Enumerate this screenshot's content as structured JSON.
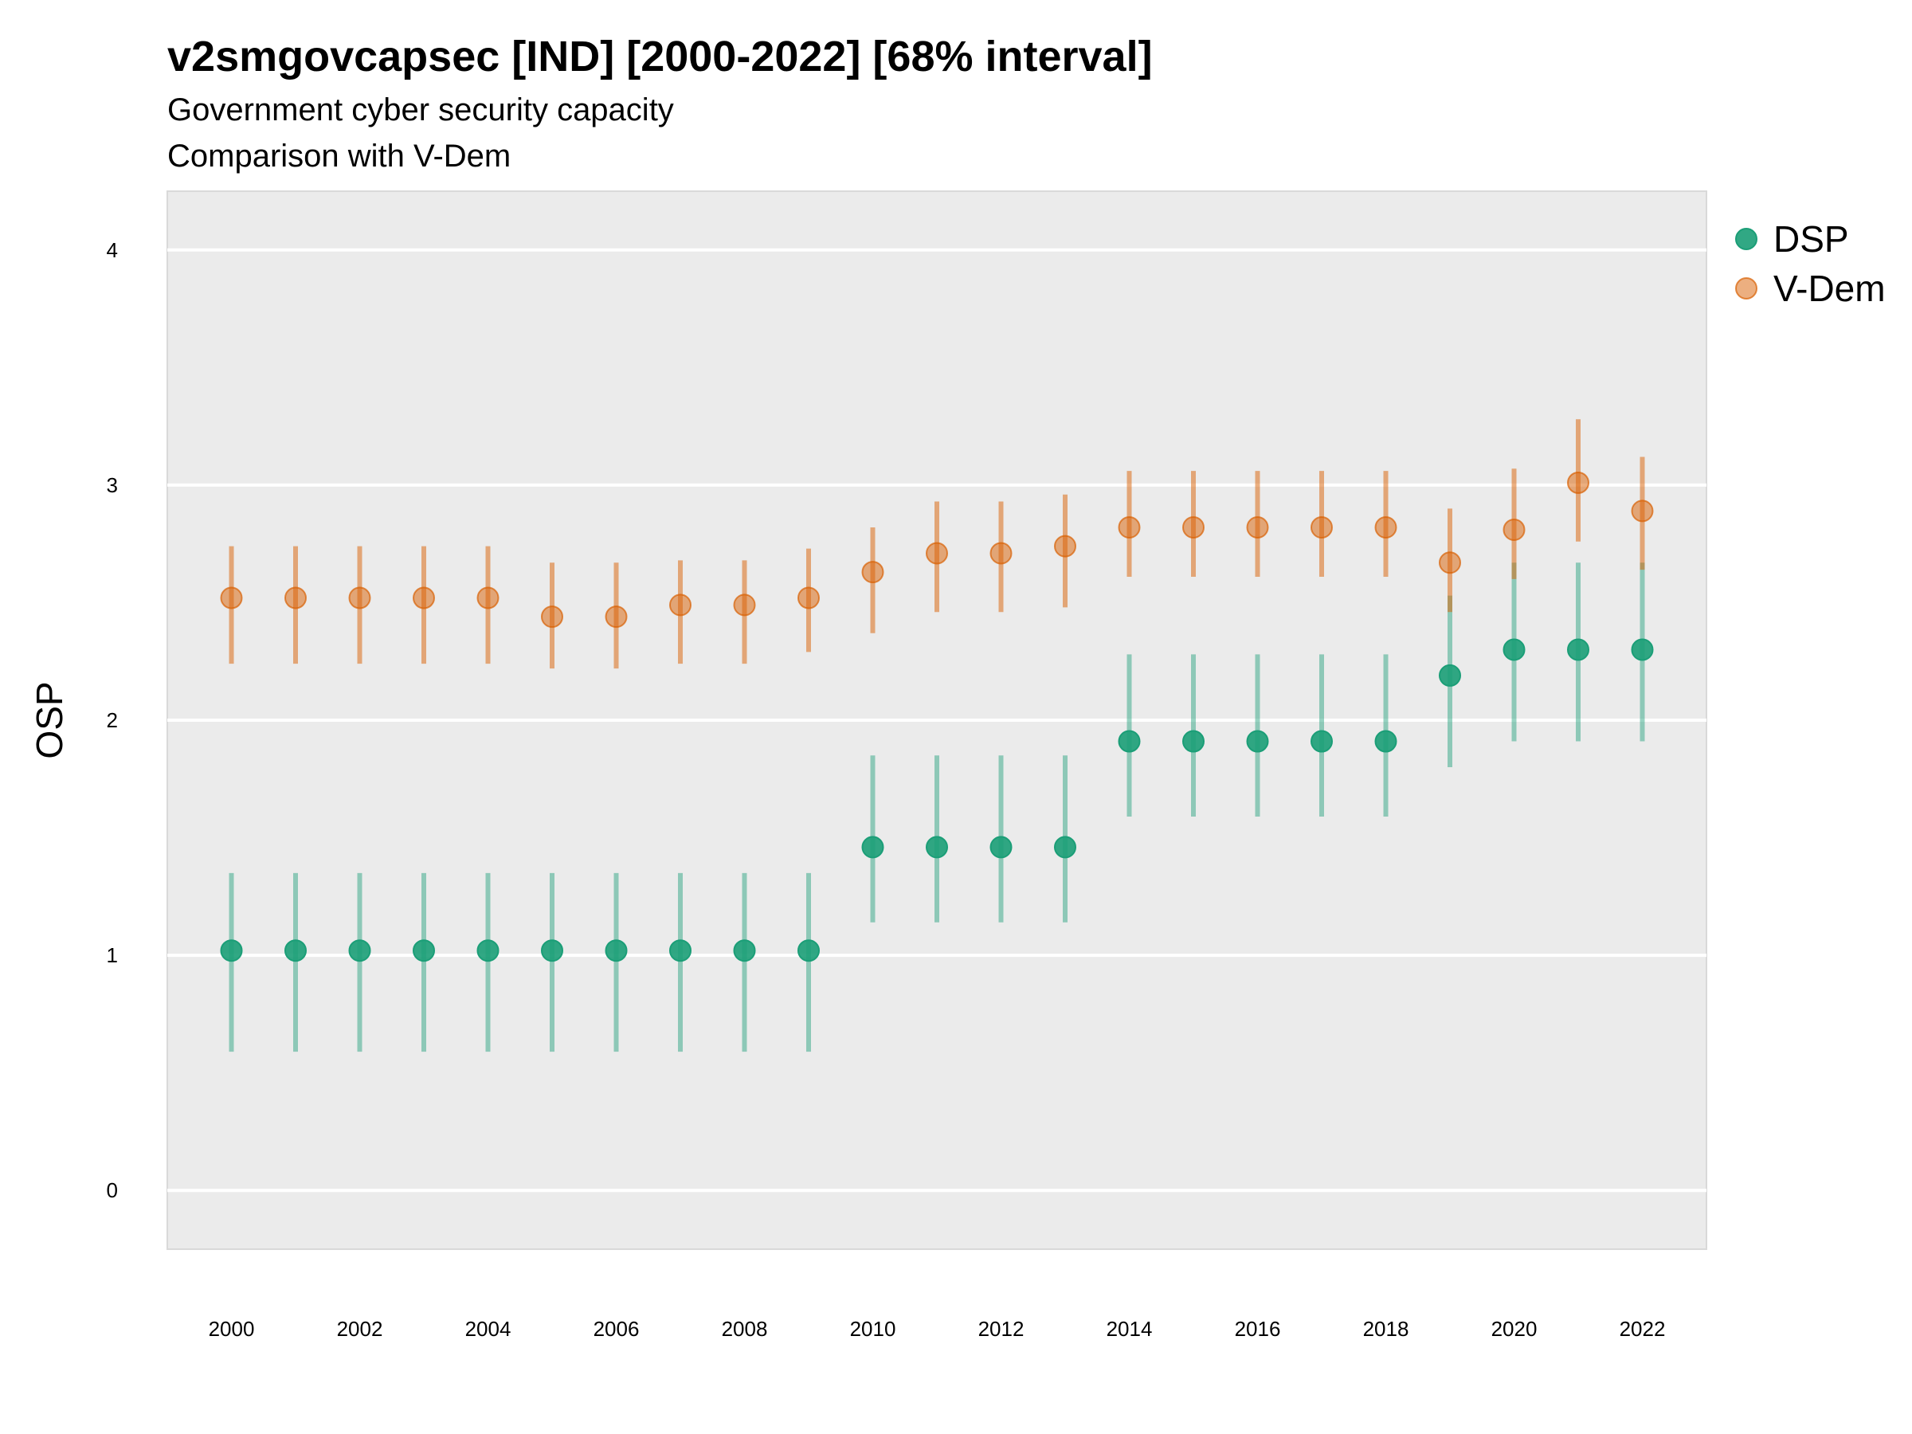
{
  "chart_data": {
    "type": "scatter",
    "title": "v2smgovcapsec [IND] [2000-2022] [68% interval]",
    "subtitle": "Government cyber security capacity",
    "subtitle2": "Comparison with V-Dem",
    "xlabel": "",
    "ylabel": "OSP",
    "x": [
      2000,
      2001,
      2002,
      2003,
      2004,
      2005,
      2006,
      2007,
      2008,
      2009,
      2010,
      2011,
      2012,
      2013,
      2014,
      2015,
      2016,
      2017,
      2018,
      2019,
      2020,
      2021,
      2022
    ],
    "xticks": [
      2000,
      2002,
      2004,
      2006,
      2008,
      2010,
      2012,
      2014,
      2016,
      2018,
      2020,
      2022
    ],
    "yticks": [
      0,
      1,
      2,
      3,
      4
    ],
    "xlim": [
      1999,
      2023
    ],
    "ylim": [
      -0.25,
      4.25
    ],
    "grid": true,
    "legend_position": "right",
    "series": [
      {
        "name": "DSP",
        "color": "#1b9e77",
        "values": [
          1.02,
          1.02,
          1.02,
          1.02,
          1.02,
          1.02,
          1.02,
          1.02,
          1.02,
          1.02,
          1.46,
          1.46,
          1.46,
          1.46,
          1.91,
          1.91,
          1.91,
          1.91,
          1.91,
          2.19,
          2.3,
          2.3,
          2.3
        ],
        "lower": [
          0.59,
          0.59,
          0.59,
          0.59,
          0.59,
          0.59,
          0.59,
          0.59,
          0.59,
          0.59,
          1.14,
          1.14,
          1.14,
          1.14,
          1.59,
          1.59,
          1.59,
          1.59,
          1.59,
          1.8,
          1.91,
          1.91,
          1.91
        ],
        "upper": [
          1.35,
          1.35,
          1.35,
          1.35,
          1.35,
          1.35,
          1.35,
          1.35,
          1.35,
          1.35,
          1.85,
          1.85,
          1.85,
          1.85,
          2.28,
          2.28,
          2.28,
          2.28,
          2.28,
          2.53,
          2.67,
          2.67,
          2.67
        ]
      },
      {
        "name": "V-Dem",
        "color": "#d95f02",
        "values": [
          2.52,
          2.52,
          2.52,
          2.52,
          2.52,
          2.44,
          2.44,
          2.49,
          2.49,
          2.52,
          2.63,
          2.71,
          2.71,
          2.74,
          2.82,
          2.82,
          2.82,
          2.82,
          2.82,
          2.67,
          2.81,
          3.01,
          2.89
        ],
        "lower": [
          2.24,
          2.24,
          2.24,
          2.24,
          2.24,
          2.22,
          2.22,
          2.24,
          2.24,
          2.29,
          2.37,
          2.46,
          2.46,
          2.48,
          2.61,
          2.61,
          2.61,
          2.61,
          2.61,
          2.46,
          2.6,
          2.76,
          2.64
        ],
        "upper": [
          2.74,
          2.74,
          2.74,
          2.74,
          2.74,
          2.67,
          2.67,
          2.68,
          2.68,
          2.73,
          2.82,
          2.93,
          2.93,
          2.96,
          3.06,
          3.06,
          3.06,
          3.06,
          3.06,
          2.9,
          3.07,
          3.28,
          3.12
        ]
      }
    ]
  }
}
